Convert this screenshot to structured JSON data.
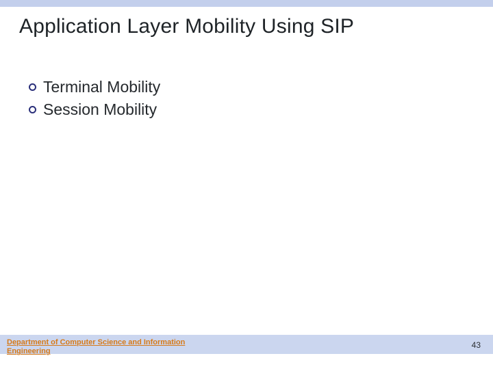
{
  "colors": {
    "top_bar": "#c3cfec",
    "footer_bar": "#cbd6ef",
    "title_text": "#1e2327",
    "bullet_ring": "#2a2f7a",
    "bullet_text": "#25292d",
    "footer_text": "#d67a1a",
    "page_number_text": "#2a2e32",
    "background": "#ffffff"
  },
  "title": "Application Layer Mobility Using SIP",
  "bullets": [
    {
      "label": "Terminal Mobility"
    },
    {
      "label": "Session Mobility"
    }
  ],
  "footer": {
    "department": "Department of Computer Science and Information Engineering"
  },
  "page_number": "43"
}
